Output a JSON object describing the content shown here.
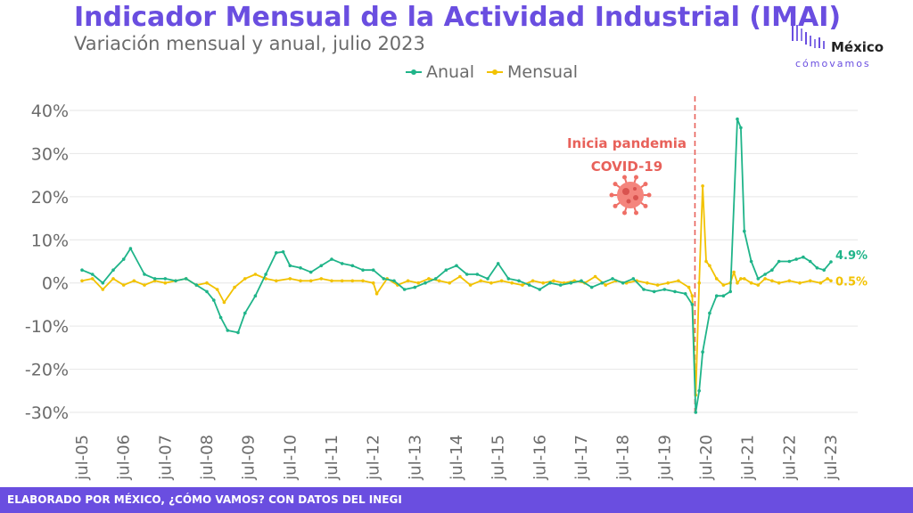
{
  "title": "Indicador Mensual de la Actividad Industrial (IMAI)",
  "subtitle": "Variación mensual y anual, julio 2023",
  "legend": {
    "anual": "Anual",
    "mensual": "Mensual"
  },
  "logo": {
    "name": "México",
    "tagline": "cómovamos"
  },
  "footer": "ELABORADO POR MÉXICO, ¿CÓMO VAMOS? CON DATOS DEL INEGI",
  "colors": {
    "accent": "#6a4ee0",
    "anual": "#1fb489",
    "mensual": "#f2c200",
    "pandemic": "#e8615a",
    "grid": "#e6e6e6",
    "axis_text": "#6b6b6b"
  },
  "chart_data": {
    "type": "line",
    "x_start": "jul-05",
    "x_end": "jul-23",
    "x_ticks": [
      "jul-05",
      "jul-06",
      "jul-07",
      "jul-08",
      "jul-09",
      "jul-10",
      "jul-11",
      "jul-12",
      "jul-13",
      "jul-14",
      "jul-15",
      "jul-16",
      "jul-17",
      "jul-18",
      "jul-19",
      "jul-20",
      "jul-21",
      "jul-22",
      "jul-23"
    ],
    "y_ticks": [
      "40%",
      "30%",
      "20%",
      "10%",
      "0%",
      "-10%",
      "-20%",
      "-30%"
    ],
    "y_tick_values": [
      40,
      30,
      20,
      10,
      0,
      -10,
      -20,
      -30
    ],
    "ylim": [
      -31,
      42
    ],
    "grid": "horizontal",
    "legend_position": "top-center",
    "series": [
      {
        "name": "Anual",
        "color": "#1fb489",
        "end_label": "4.9%",
        "points": [
          [
            "jul-05",
            3
          ],
          [
            "oct-05",
            2
          ],
          [
            "ene-06",
            0
          ],
          [
            "abr-06",
            3
          ],
          [
            "jul-06",
            5.5
          ],
          [
            "sep-06",
            8
          ],
          [
            "ene-07",
            2
          ],
          [
            "abr-07",
            1
          ],
          [
            "jul-07",
            1
          ],
          [
            "oct-07",
            0.5
          ],
          [
            "ene-08",
            1
          ],
          [
            "abr-08",
            -0.5
          ],
          [
            "jul-08",
            -2
          ],
          [
            "sep-08",
            -4
          ],
          [
            "nov-08",
            -8
          ],
          [
            "ene-09",
            -11
          ],
          [
            "abr-09",
            -11.5
          ],
          [
            "jun-09",
            -7
          ],
          [
            "sep-09",
            -3
          ],
          [
            "dic-09",
            2
          ],
          [
            "mar-10",
            7
          ],
          [
            "may-10",
            7.2
          ],
          [
            "jul-10",
            4
          ],
          [
            "oct-10",
            3.5
          ],
          [
            "ene-11",
            2.5
          ],
          [
            "abr-11",
            4
          ],
          [
            "jul-11",
            5.5
          ],
          [
            "oct-11",
            4.5
          ],
          [
            "ene-12",
            4
          ],
          [
            "abr-12",
            3
          ],
          [
            "jul-12",
            3
          ],
          [
            "oct-12",
            1
          ],
          [
            "ene-13",
            0.5
          ],
          [
            "abr-13",
            -1.5
          ],
          [
            "jul-13",
            -1
          ],
          [
            "oct-13",
            0
          ],
          [
            "ene-14",
            1
          ],
          [
            "abr-14",
            3
          ],
          [
            "jul-14",
            4
          ],
          [
            "oct-14",
            2
          ],
          [
            "ene-15",
            2
          ],
          [
            "abr-15",
            1
          ],
          [
            "jul-15",
            4.5
          ],
          [
            "oct-15",
            1
          ],
          [
            "ene-16",
            0.5
          ],
          [
            "abr-16",
            -0.5
          ],
          [
            "jul-16",
            -1.5
          ],
          [
            "oct-16",
            0
          ],
          [
            "ene-17",
            -0.5
          ],
          [
            "abr-17",
            0
          ],
          [
            "jul-17",
            0.5
          ],
          [
            "oct-17",
            -1
          ],
          [
            "ene-18",
            0
          ],
          [
            "abr-18",
            1
          ],
          [
            "jul-18",
            0
          ],
          [
            "oct-18",
            1
          ],
          [
            "ene-19",
            -1.5
          ],
          [
            "abr-19",
            -2
          ],
          [
            "jul-19",
            -1.5
          ],
          [
            "oct-19",
            -2
          ],
          [
            "ene-20",
            -2.5
          ],
          [
            "mar-20",
            -5
          ],
          [
            "abr-20",
            -30
          ],
          [
            "may-20",
            -25
          ],
          [
            "jun-20",
            -16
          ],
          [
            "ago-20",
            -7
          ],
          [
            "oct-20",
            -3
          ],
          [
            "dic-20",
            -3
          ],
          [
            "feb-21",
            -2
          ],
          [
            "abr-21",
            38
          ],
          [
            "may-21",
            36
          ],
          [
            "jun-21",
            12
          ],
          [
            "ago-21",
            5
          ],
          [
            "oct-21",
            1
          ],
          [
            "dic-21",
            2
          ],
          [
            "feb-22",
            3
          ],
          [
            "abr-22",
            5
          ],
          [
            "jul-22",
            5
          ],
          [
            "sep-22",
            5.5
          ],
          [
            "nov-22",
            6
          ],
          [
            "ene-23",
            5
          ],
          [
            "mar-23",
            3.5
          ],
          [
            "may-23",
            3
          ],
          [
            "jul-23",
            4.9
          ]
        ]
      },
      {
        "name": "Mensual",
        "color": "#f2c200",
        "end_label": "0.5%",
        "points": [
          [
            "jul-05",
            0.5
          ],
          [
            "oct-05",
            1
          ],
          [
            "ene-06",
            -1.5
          ],
          [
            "abr-06",
            1
          ],
          [
            "jul-06",
            -0.5
          ],
          [
            "oct-06",
            0.5
          ],
          [
            "ene-07",
            -0.5
          ],
          [
            "abr-07",
            0.5
          ],
          [
            "jul-07",
            0
          ],
          [
            "oct-07",
            0.5
          ],
          [
            "ene-08",
            1
          ],
          [
            "abr-08",
            -0.5
          ],
          [
            "jul-08",
            0
          ],
          [
            "oct-08",
            -1.5
          ],
          [
            "dic-08",
            -4.5
          ],
          [
            "mar-09",
            -1
          ],
          [
            "jun-09",
            1
          ],
          [
            "sep-09",
            2
          ],
          [
            "dic-09",
            1
          ],
          [
            "mar-10",
            0.5
          ],
          [
            "jul-10",
            1
          ],
          [
            "oct-10",
            0.5
          ],
          [
            "ene-11",
            0.5
          ],
          [
            "abr-11",
            1
          ],
          [
            "jul-11",
            0.5
          ],
          [
            "oct-11",
            0.5
          ],
          [
            "ene-12",
            0.5
          ],
          [
            "abr-12",
            0.5
          ],
          [
            "jul-12",
            0
          ],
          [
            "ago-12",
            -2.5
          ],
          [
            "nov-12",
            1
          ],
          [
            "feb-13",
            -0.5
          ],
          [
            "may-13",
            0.5
          ],
          [
            "ago-13",
            0
          ],
          [
            "nov-13",
            1
          ],
          [
            "feb-14",
            0.5
          ],
          [
            "may-14",
            0
          ],
          [
            "ago-14",
            1.5
          ],
          [
            "nov-14",
            -0.5
          ],
          [
            "feb-15",
            0.5
          ],
          [
            "may-15",
            0
          ],
          [
            "ago-15",
            0.5
          ],
          [
            "nov-15",
            0
          ],
          [
            "feb-16",
            -0.5
          ],
          [
            "may-16",
            0.5
          ],
          [
            "ago-16",
            0
          ],
          [
            "nov-16",
            0.5
          ],
          [
            "feb-17",
            0
          ],
          [
            "may-17",
            0.5
          ],
          [
            "ago-17",
            0
          ],
          [
            "nov-17",
            1.5
          ],
          [
            "feb-18",
            -0.5
          ],
          [
            "may-18",
            0.5
          ],
          [
            "ago-18",
            0
          ],
          [
            "nov-18",
            0.5
          ],
          [
            "feb-19",
            0
          ],
          [
            "may-19",
            -0.5
          ],
          [
            "ago-19",
            0
          ],
          [
            "nov-19",
            0.5
          ],
          [
            "feb-20",
            -1
          ],
          [
            "mar-20",
            -3
          ],
          [
            "abr-20",
            -26
          ],
          [
            "may-20",
            0
          ],
          [
            "jun-20",
            22.5
          ],
          [
            "jul-20",
            5
          ],
          [
            "ago-20",
            4
          ],
          [
            "oct-20",
            1
          ],
          [
            "dic-20",
            -0.5
          ],
          [
            "feb-21",
            0
          ],
          [
            "mar-21",
            2.5
          ],
          [
            "abr-21",
            0
          ],
          [
            "may-21",
            1
          ],
          [
            "jun-21",
            1
          ],
          [
            "ago-21",
            0
          ],
          [
            "oct-21",
            -0.5
          ],
          [
            "dic-21",
            1
          ],
          [
            "feb-22",
            0.5
          ],
          [
            "abr-22",
            0
          ],
          [
            "jul-22",
            0.5
          ],
          [
            "oct-22",
            0
          ],
          [
            "ene-23",
            0.5
          ],
          [
            "abr-23",
            0
          ],
          [
            "jun-23",
            1
          ],
          [
            "jul-23",
            0.5
          ]
        ]
      }
    ],
    "annotations": [
      {
        "text": [
          "Inicia pandemia",
          "COVID-19"
        ],
        "x": "mar-20",
        "type": "vertical-dashed-line",
        "icon": "virus-icon"
      }
    ]
  }
}
